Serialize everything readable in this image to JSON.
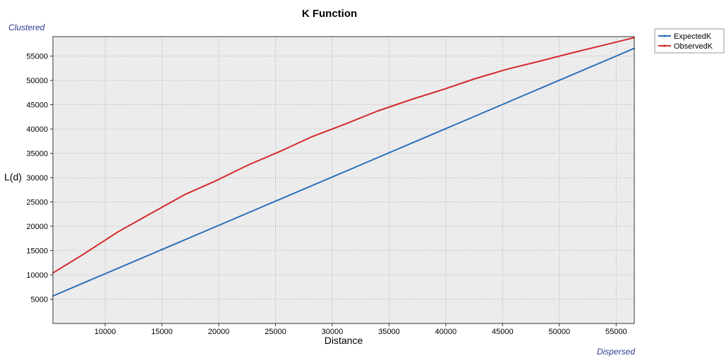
{
  "chart_data": {
    "type": "line",
    "title": "K Function",
    "xlabel": "Distance",
    "ylabel": "L(d)",
    "xlim": [
      5400,
      56600
    ],
    "ylim": [
      0,
      59000
    ],
    "x_ticks": [
      10000,
      15000,
      20000,
      25000,
      30000,
      35000,
      40000,
      45000,
      50000,
      55000
    ],
    "y_ticks": [
      5000,
      10000,
      15000,
      20000,
      25000,
      30000,
      35000,
      40000,
      45000,
      50000,
      55000
    ],
    "grid": true,
    "legend_position": "top-right",
    "annotations": {
      "top": "Clustered",
      "bottom": "Dispersed"
    },
    "series": [
      {
        "name": "ExpectedK",
        "color": "#2c6fbb",
        "points": [
          [
            5400,
            5650
          ],
          [
            56600,
            56600
          ]
        ]
      },
      {
        "name": "ObservedK",
        "color": "#d42a2a",
        "points": [
          [
            5400,
            10400
          ],
          [
            8000,
            14100
          ],
          [
            11100,
            18800
          ],
          [
            14000,
            22600
          ],
          [
            17000,
            26500
          ],
          [
            19700,
            29300
          ],
          [
            22600,
            32600
          ],
          [
            25600,
            35600
          ],
          [
            28200,
            38400
          ],
          [
            31000,
            40900
          ],
          [
            34000,
            43700
          ],
          [
            37000,
            46100
          ],
          [
            40000,
            48300
          ],
          [
            42500,
            50300
          ],
          [
            45400,
            52300
          ],
          [
            48000,
            53800
          ],
          [
            51000,
            55600
          ],
          [
            54000,
            57300
          ],
          [
            56600,
            58800
          ]
        ]
      }
    ]
  }
}
